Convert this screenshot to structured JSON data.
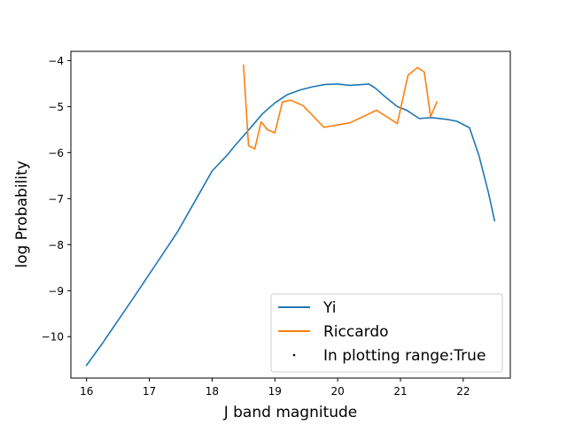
{
  "chart_data": {
    "type": "line",
    "title": "",
    "xlabel": "J band magnitude",
    "ylabel": "log Probability",
    "xlim": [
      15.75,
      22.75
    ],
    "ylim": [
      -10.9,
      -3.8
    ],
    "xticks": [
      16,
      17,
      18,
      19,
      20,
      21,
      22
    ],
    "yticks": [
      -10,
      -9,
      -8,
      -7,
      -6,
      -5,
      -4
    ],
    "xtick_labels": [
      "16",
      "17",
      "18",
      "19",
      "20",
      "21",
      "22"
    ],
    "ytick_labels": [
      "−10",
      "−9",
      "−8",
      "−7",
      "−6",
      "−5",
      "−4"
    ],
    "grid": false,
    "legend_position": "lower-right",
    "series": [
      {
        "name": "Yi",
        "color": "#1f77b4",
        "x": [
          16.0,
          16.25,
          16.5,
          16.75,
          17.0,
          17.25,
          17.45,
          17.75,
          18.0,
          18.25,
          18.38,
          18.6,
          18.8,
          19.0,
          19.2,
          19.4,
          19.6,
          19.8,
          20.0,
          20.2,
          20.5,
          20.6,
          20.75,
          20.95,
          21.1,
          21.3,
          21.5,
          21.75,
          21.9,
          22.1,
          22.25,
          22.4,
          22.5
        ],
        "y": [
          -10.62,
          -10.15,
          -9.65,
          -9.15,
          -8.64,
          -8.13,
          -7.72,
          -7.0,
          -6.4,
          -6.04,
          -5.82,
          -5.48,
          -5.16,
          -4.92,
          -4.74,
          -4.64,
          -4.57,
          -4.52,
          -4.51,
          -4.54,
          -4.51,
          -4.6,
          -4.78,
          -5.0,
          -5.08,
          -5.26,
          -5.24,
          -5.28,
          -5.32,
          -5.46,
          -6.06,
          -6.86,
          -7.48
        ]
      },
      {
        "name": "Riccardo",
        "color": "#ff7f0e",
        "x": [
          18.5,
          18.58,
          18.68,
          18.78,
          18.88,
          19.0,
          19.12,
          19.25,
          19.45,
          19.78,
          20.2,
          20.62,
          20.95,
          21.12,
          21.27,
          21.38,
          21.48,
          21.58
        ],
        "y": [
          -4.1,
          -5.85,
          -5.92,
          -5.33,
          -5.5,
          -5.57,
          -4.9,
          -4.86,
          -4.98,
          -5.45,
          -5.35,
          -5.08,
          -5.37,
          -4.32,
          -4.15,
          -4.25,
          -5.22,
          -4.9
        ]
      },
      {
        "name": "In plotting range:True",
        "color": "#000000",
        "marker": "point",
        "x": [],
        "y": []
      }
    ]
  }
}
